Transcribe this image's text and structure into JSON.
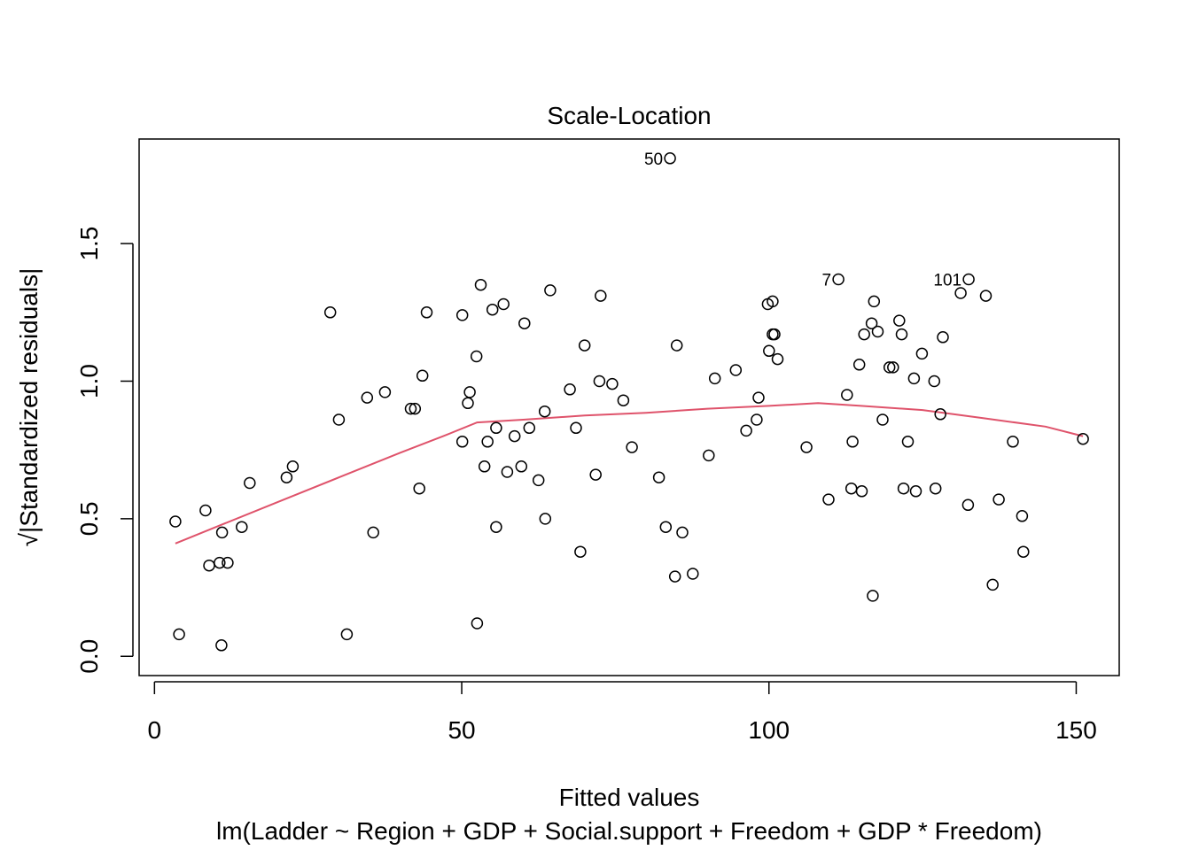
{
  "chart_data": {
    "type": "scatter",
    "title": "Scale-Location",
    "xlabel": "Fitted values",
    "ylabel": "√|Standardized residuals|",
    "subtitle": "lm(Ladder ~ Region + GDP + Social.support + Freedom + GDP * Freedom)",
    "xlim": [
      -2.5,
      157
    ],
    "ylim": [
      -0.07,
      1.88
    ],
    "x_ticks": [
      0,
      50,
      100,
      150
    ],
    "x_tick_labels": [
      "0",
      "50",
      "100",
      "150"
    ],
    "y_ticks": [
      0.0,
      0.5,
      1.0,
      1.5
    ],
    "y_tick_labels": [
      "0.0",
      "0.5",
      "1.0",
      "1.5"
    ],
    "grid": false,
    "colors": {
      "points": "#000000",
      "smoother": "#DF536B"
    },
    "points": [
      [
        83.9,
        1.81
      ],
      [
        111.3,
        1.37
      ],
      [
        132.5,
        1.37
      ],
      [
        3.4,
        0.49
      ],
      [
        4.0,
        0.08
      ],
      [
        8.3,
        0.53
      ],
      [
        8.9,
        0.33
      ],
      [
        10.6,
        0.34
      ],
      [
        11.0,
        0.45
      ],
      [
        10.9,
        0.04
      ],
      [
        11.9,
        0.34
      ],
      [
        14.2,
        0.47
      ],
      [
        15.5,
        0.63
      ],
      [
        21.5,
        0.65
      ],
      [
        22.5,
        0.69
      ],
      [
        28.6,
        1.25
      ],
      [
        30.0,
        0.86
      ],
      [
        31.3,
        0.08
      ],
      [
        34.6,
        0.94
      ],
      [
        35.6,
        0.45
      ],
      [
        37.5,
        0.96
      ],
      [
        41.7,
        0.9
      ],
      [
        42.4,
        0.9
      ],
      [
        43.1,
        0.61
      ],
      [
        43.6,
        1.02
      ],
      [
        44.3,
        1.25
      ],
      [
        50.1,
        0.78
      ],
      [
        50.1,
        1.24
      ],
      [
        51.0,
        0.92
      ],
      [
        51.3,
        0.96
      ],
      [
        52.4,
        1.09
      ],
      [
        52.5,
        0.12
      ],
      [
        53.1,
        1.35
      ],
      [
        53.7,
        0.69
      ],
      [
        54.2,
        0.78
      ],
      [
        55.0,
        1.26
      ],
      [
        55.6,
        0.83
      ],
      [
        55.6,
        0.47
      ],
      [
        56.8,
        1.28
      ],
      [
        57.4,
        0.67
      ],
      [
        58.6,
        0.8
      ],
      [
        59.7,
        0.69
      ],
      [
        60.2,
        1.21
      ],
      [
        61.0,
        0.83
      ],
      [
        62.5,
        0.64
      ],
      [
        63.5,
        0.89
      ],
      [
        63.6,
        0.5
      ],
      [
        64.4,
        1.33
      ],
      [
        67.6,
        0.97
      ],
      [
        68.6,
        0.83
      ],
      [
        69.3,
        0.38
      ],
      [
        70.0,
        1.13
      ],
      [
        71.8,
        0.66
      ],
      [
        72.4,
        1.0
      ],
      [
        72.6,
        1.31
      ],
      [
        74.5,
        0.99
      ],
      [
        76.3,
        0.93
      ],
      [
        77.7,
        0.76
      ],
      [
        82.1,
        0.65
      ],
      [
        83.2,
        0.47
      ],
      [
        84.7,
        0.29
      ],
      [
        85.0,
        1.13
      ],
      [
        85.9,
        0.45
      ],
      [
        87.6,
        0.3
      ],
      [
        90.2,
        0.73
      ],
      [
        91.2,
        1.01
      ],
      [
        94.6,
        1.04
      ],
      [
        96.3,
        0.82
      ],
      [
        98.0,
        0.86
      ],
      [
        98.3,
        0.94
      ],
      [
        99.8,
        1.28
      ],
      [
        100.0,
        1.11
      ],
      [
        100.6,
        1.29
      ],
      [
        100.6,
        1.17
      ],
      [
        100.9,
        1.17
      ],
      [
        101.4,
        1.08
      ],
      [
        106.1,
        0.76
      ],
      [
        109.7,
        0.57
      ],
      [
        112.7,
        0.95
      ],
      [
        113.4,
        0.61
      ],
      [
        113.6,
        0.78
      ],
      [
        114.7,
        1.06
      ],
      [
        115.1,
        0.6
      ],
      [
        115.5,
        1.17
      ],
      [
        116.7,
        1.21
      ],
      [
        116.9,
        0.22
      ],
      [
        117.1,
        1.29
      ],
      [
        117.7,
        1.18
      ],
      [
        118.5,
        0.86
      ],
      [
        119.6,
        1.05
      ],
      [
        120.2,
        1.05
      ],
      [
        121.2,
        1.22
      ],
      [
        121.6,
        1.17
      ],
      [
        121.9,
        0.61
      ],
      [
        122.6,
        0.78
      ],
      [
        123.6,
        1.01
      ],
      [
        123.9,
        0.6
      ],
      [
        124.9,
        1.1
      ],
      [
        126.9,
        1.0
      ],
      [
        127.1,
        0.61
      ],
      [
        127.9,
        0.88
      ],
      [
        128.3,
        1.16
      ],
      [
        131.2,
        1.32
      ],
      [
        132.4,
        0.55
      ],
      [
        135.3,
        1.31
      ],
      [
        136.4,
        0.26
      ],
      [
        137.4,
        0.57
      ],
      [
        139.7,
        0.78
      ],
      [
        141.2,
        0.51
      ],
      [
        141.4,
        0.38
      ],
      [
        151.1,
        0.79
      ]
    ],
    "labeled_points": [
      {
        "label": "50",
        "x": 83.9,
        "y": 1.81
      },
      {
        "label": "7",
        "x": 111.3,
        "y": 1.37
      },
      {
        "label": "101",
        "x": 132.5,
        "y": 1.37
      }
    ],
    "smoother": [
      [
        3.4,
        0.41
      ],
      [
        10,
        0.47
      ],
      [
        20,
        0.56
      ],
      [
        30,
        0.65
      ],
      [
        40,
        0.74
      ],
      [
        47,
        0.8
      ],
      [
        52.5,
        0.85
      ],
      [
        60,
        0.86
      ],
      [
        70,
        0.875
      ],
      [
        80,
        0.885
      ],
      [
        90,
        0.9
      ],
      [
        100,
        0.91
      ],
      [
        108,
        0.92
      ],
      [
        115,
        0.91
      ],
      [
        125,
        0.895
      ],
      [
        135,
        0.865
      ],
      [
        145,
        0.835
      ],
      [
        151.1,
        0.8
      ]
    ]
  }
}
